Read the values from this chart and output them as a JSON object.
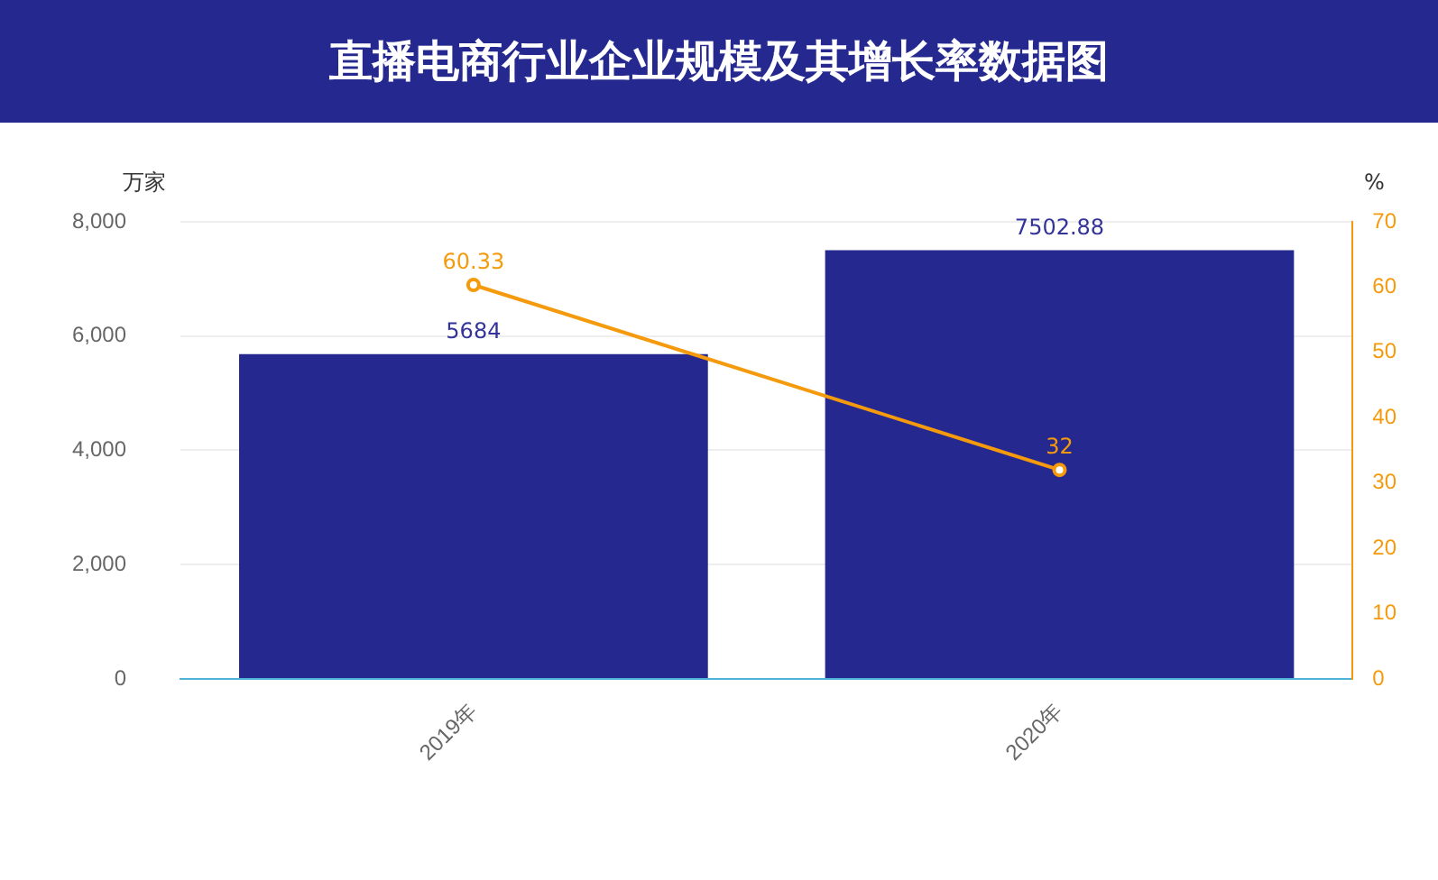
{
  "chart_data": {
    "type": "bar",
    "title": "直播电商行业企业规模及其增长率数据图",
    "ylabel": "万家",
    "y2label": "%",
    "categories": [
      "2019年",
      "2020年"
    ],
    "series": [
      {
        "color": "#25288f",
        "values": [
          5684,
          7502.88
        ]
      },
      {
        "type": "line",
        "axis": "y2",
        "color": "#f59a0c",
        "values": [
          60.33,
          32
        ],
        "marker": "circle"
      }
    ],
    "ylim": [
      0,
      8000
    ],
    "yticks": [
      0,
      {
        "value": 2000,
        "label": "2,000"
      },
      {
        "value": 4000,
        "label": "4,000"
      },
      {
        "value": 6000,
        "label": "6,000"
      },
      {
        "value": 8000,
        "label": "8,000"
      }
    ],
    "y2lim": [
      0,
      70
    ],
    "y2ticks": [
      0,
      10,
      20,
      30,
      40,
      50,
      60,
      70
    ],
    "grid": "y",
    "legend": false,
    "data_labels": true
  }
}
